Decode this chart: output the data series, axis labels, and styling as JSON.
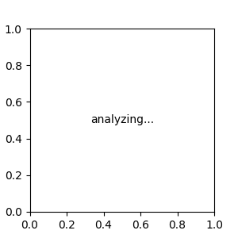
{
  "bg_color": "#e8e8e8",
  "bond_color": "#000000",
  "N_color": "#0000cc",
  "O_color": "#cc0000",
  "F_color": "#0000cc",
  "lw": 1.5,
  "figsize": [
    3.0,
    3.0
  ],
  "dpi": 100,
  "font_size": 9,
  "font_size_small": 8
}
